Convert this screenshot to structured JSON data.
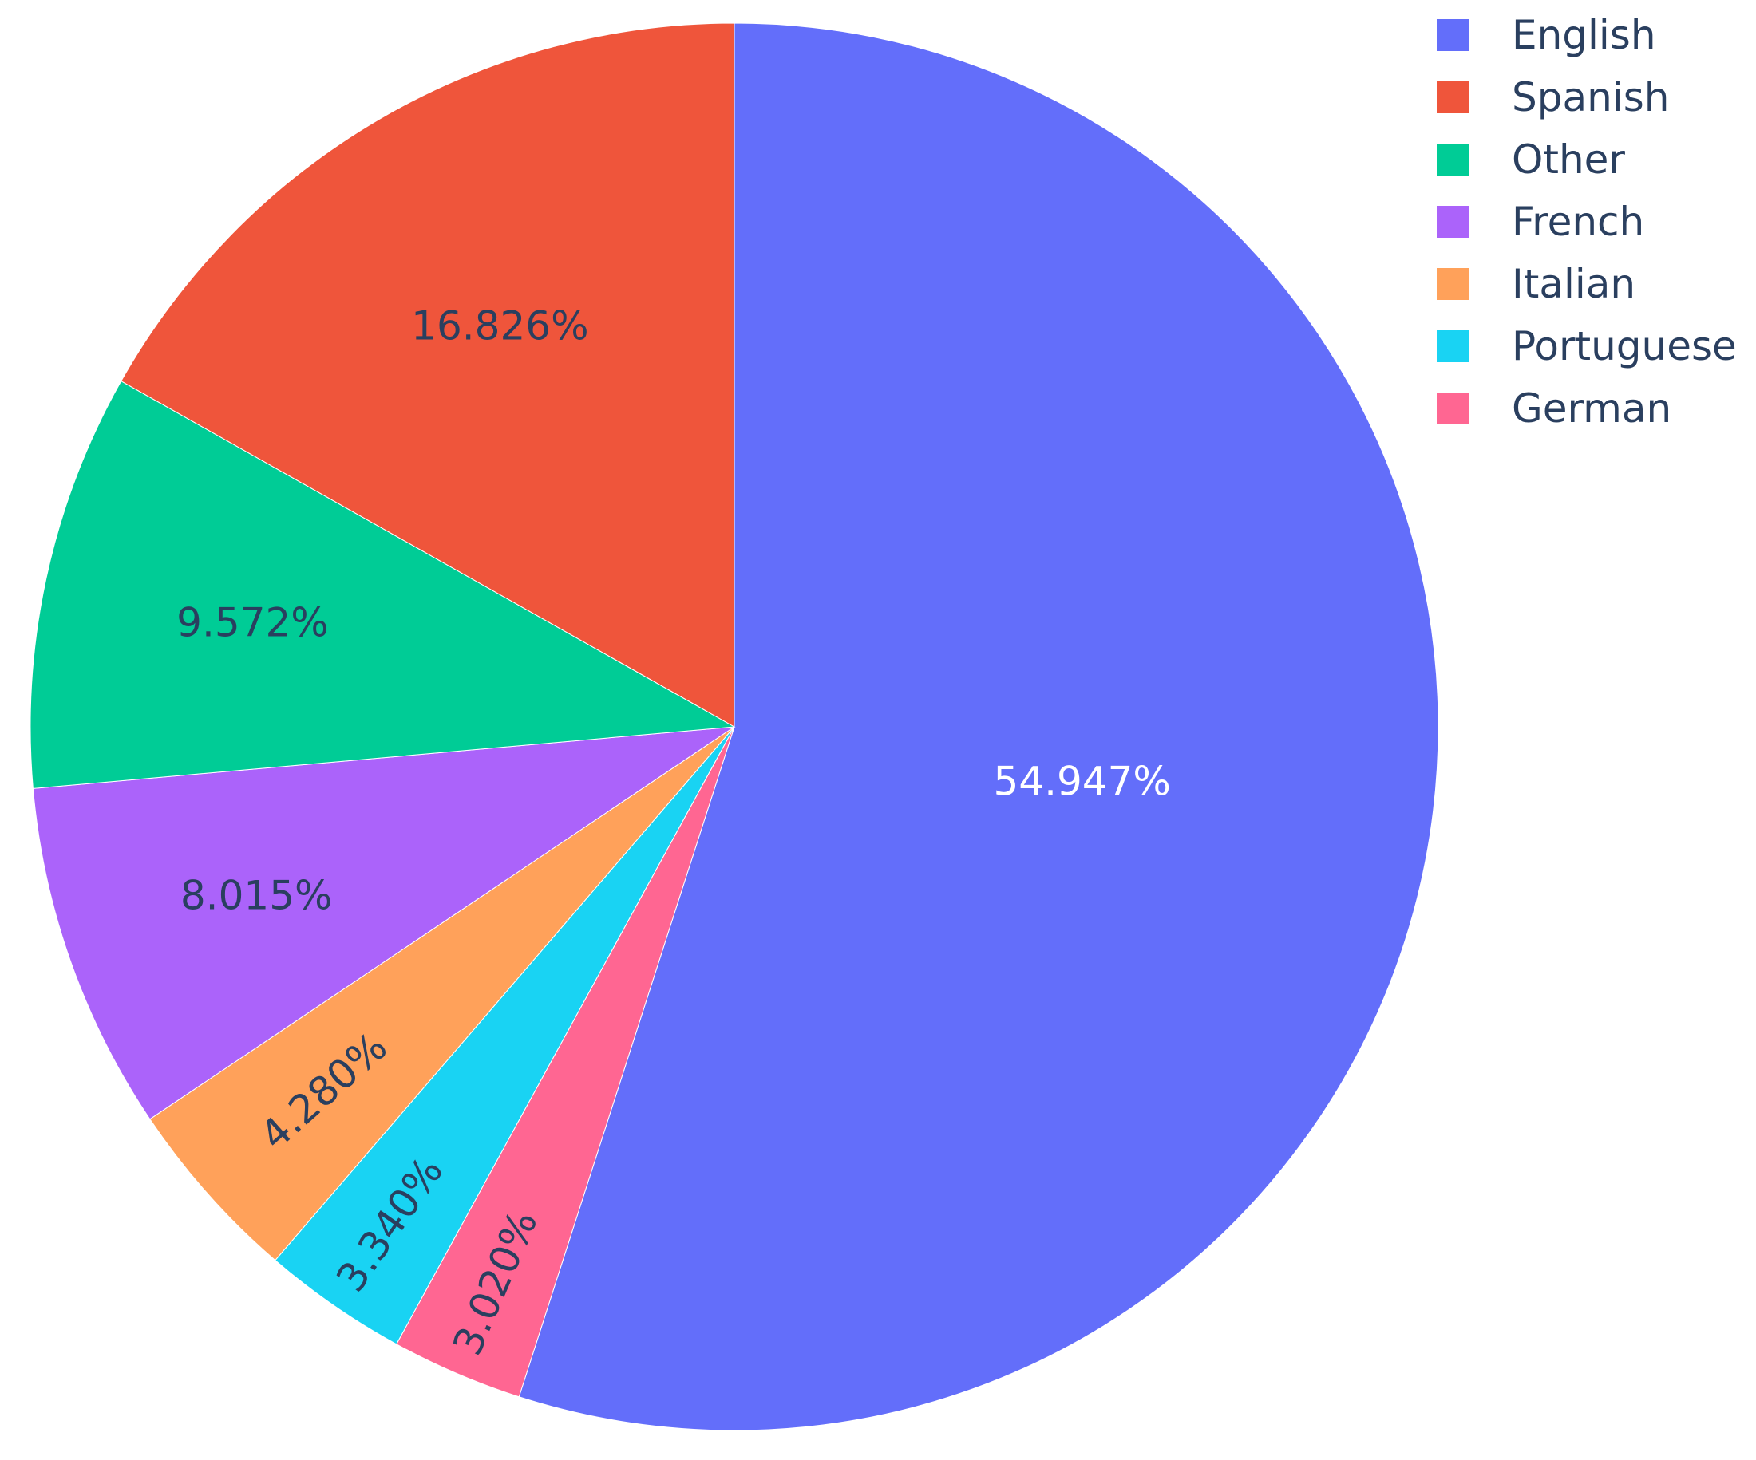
{
  "chart_data": {
    "type": "pie",
    "direction": "clockwise",
    "start": "12 o'clock",
    "legend_position": "top-right",
    "label_color_on_dark": "#ffffff",
    "label_color_on_light": "#2a3f5f",
    "slices": [
      {
        "label": "English",
        "value": 54.947,
        "text": "54.947%",
        "color": "#636efa"
      },
      {
        "label": "German",
        "value": 3.02,
        "text": "3.020%",
        "color": "#ff6692"
      },
      {
        "label": "Portuguese",
        "value": 3.34,
        "text": "3.340%",
        "color": "#19d3f3"
      },
      {
        "label": "Italian",
        "value": 4.28,
        "text": "4.280%",
        "color": "#ffa15a"
      },
      {
        "label": "French",
        "value": 8.015,
        "text": "8.015%",
        "color": "#ab63fa"
      },
      {
        "label": "Other",
        "value": 9.572,
        "text": "9.572%",
        "color": "#00cc96"
      },
      {
        "label": "Spanish",
        "value": 16.826,
        "text": "16.826%",
        "color": "#ef553b"
      }
    ],
    "legend": [
      {
        "label": "English",
        "color": "#636efa"
      },
      {
        "label": "Spanish",
        "color": "#ef553b"
      },
      {
        "label": "Other",
        "color": "#00cc96"
      },
      {
        "label": "French",
        "color": "#ab63fa"
      },
      {
        "label": "Italian",
        "color": "#ffa15a"
      },
      {
        "label": "Portuguese",
        "color": "#19d3f3"
      },
      {
        "label": "German",
        "color": "#ff6692"
      }
    ]
  }
}
